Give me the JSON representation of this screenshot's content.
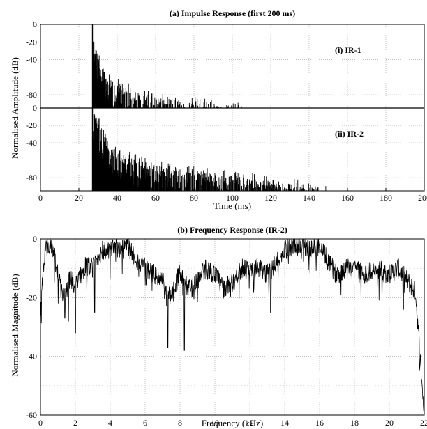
{
  "chart_data": [
    {
      "type": "area",
      "title": "(a) Impulse Response (first 200 ms)",
      "xlabel": "Time (ms)",
      "ylabel": "Normalised Amplitude (dB)",
      "xlim": [
        0,
        200
      ],
      "xticks": [
        0,
        20,
        40,
        60,
        80,
        100,
        120,
        140,
        160,
        180,
        200
      ],
      "grid": true,
      "subplots": [
        {
          "label": "(i) IR-1",
          "ylim": [
            -95,
            0
          ],
          "yticks": [
            0,
            -20,
            -40,
            -80
          ],
          "onset_ms": 27,
          "envelope": {
            "x": [
              27,
              28,
              29,
              30,
              32,
              34,
              36,
              38,
              40,
              45,
              50,
              55,
              60,
              65,
              70,
              75,
              80,
              90,
              100,
              105
            ],
            "y": [
              0,
              -10,
              -22,
              -35,
              -45,
              -55,
              -60,
              -62,
              -66,
              -72,
              -76,
              -80,
              -82,
              -85,
              -86,
              -87,
              -88,
              -90,
              -92,
              -95
            ]
          }
        },
        {
          "label": "(ii) IR-2",
          "ylim": [
            -95,
            0
          ],
          "yticks": [
            0,
            -20,
            -40,
            -80
          ],
          "onset_ms": 27,
          "envelope": {
            "x": [
              27,
              28,
              30,
              33,
              36,
              40,
              45,
              50,
              55,
              60,
              70,
              80,
              90,
              100,
              110,
              120,
              130,
              140,
              150
            ],
            "y": [
              0,
              -5,
              -15,
              -30,
              -42,
              -48,
              -55,
              -58,
              -62,
              -66,
              -70,
              -72,
              -75,
              -78,
              -80,
              -84,
              -86,
              -88,
              -92
            ]
          }
        }
      ]
    },
    {
      "type": "line",
      "title": "(b) Frequency Response (IR-2)",
      "xlabel": "Frequency (kHz)",
      "ylabel": "Normalised Magnitude (dB)",
      "xlim": [
        0,
        22
      ],
      "ylim": [
        -60,
        0
      ],
      "xticks": [
        0,
        2,
        4,
        6,
        8,
        10,
        12,
        14,
        16,
        18,
        20,
        22
      ],
      "yticks": [
        0,
        -20,
        -40,
        -60
      ],
      "grid": true,
      "series": [
        {
          "x": [
            0,
            0.3,
            0.5,
            0.8,
            1,
            1.2,
            1.4,
            1.6,
            1.8,
            2,
            2.3,
            2.6,
            3,
            3.5,
            4,
            4.5,
            5,
            5.3,
            5.6,
            6,
            6.5,
            7,
            7.3,
            7.6,
            8,
            8.3,
            8.6,
            9,
            9.5,
            10,
            10.5,
            11,
            11.5,
            12,
            12.5,
            13,
            13.5,
            14,
            14.5,
            15,
            15.5,
            16,
            16.5,
            17,
            17.5,
            18,
            18.5,
            19,
            19.5,
            20,
            20.5,
            21,
            21.5,
            22
          ],
          "y": [
            -20,
            -3,
            -2,
            -6,
            -12,
            -18,
            -20,
            -15,
            -14,
            -16,
            -12,
            -9,
            -10,
            -4,
            -4,
            -3,
            -2,
            -5,
            -8,
            -10,
            -12,
            -14,
            -20,
            -18,
            -11,
            -16,
            -17,
            -14,
            -10,
            -12,
            -17,
            -15,
            -10,
            -11,
            -10,
            -12,
            -8,
            -4,
            -2,
            -2,
            -4,
            -2,
            -8,
            -12,
            -10,
            -9,
            -12,
            -11,
            -11,
            -12,
            -10,
            -14,
            -18,
            -60
          ]
        }
      ],
      "minima": [
        {
          "x": 1.4,
          "y": -27
        },
        {
          "x": 1.6,
          "y": -28
        },
        {
          "x": 2.0,
          "y": -32
        },
        {
          "x": 3.1,
          "y": -25
        },
        {
          "x": 7.3,
          "y": -37
        },
        {
          "x": 8.25,
          "y": -38
        },
        {
          "x": 13.2,
          "y": -25
        },
        {
          "x": 20.8,
          "y": -24
        }
      ]
    }
  ]
}
